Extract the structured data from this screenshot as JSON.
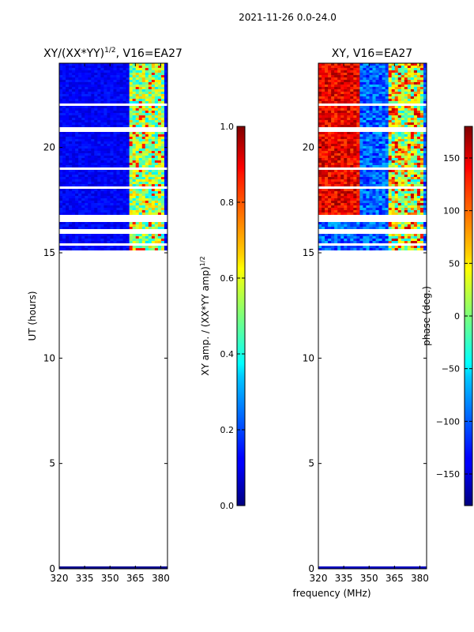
{
  "figure": {
    "suptitle": "2021-11-26 0.0-24.0",
    "xlabel": "frequency (MHz)"
  },
  "chart_data": [
    {
      "type": "heatmap",
      "title_main": "XY/(XX*YY)",
      "title_sup": "1/2",
      "title_rest": ", V16=EA27",
      "ylabel": "UT (hours)",
      "xlim": [
        320,
        384
      ],
      "ylim": [
        0,
        24
      ],
      "x_ticks": [
        320,
        335,
        350,
        365,
        380
      ],
      "y_ticks": [
        0,
        5,
        10,
        15,
        20
      ],
      "data_rows_ut": [
        15.2,
        24.0
      ],
      "rfi_band_mhz": [
        361,
        383
      ],
      "colorbar": {
        "label_main": "XY amp. / (XX*YY amp)",
        "label_sup": "1/2",
        "range": [
          0.0,
          1.0
        ],
        "ticks": [
          "0.0",
          "0.2",
          "0.4",
          "0.6",
          "0.8",
          "1.0"
        ],
        "tick_values": [
          0.0,
          0.2,
          0.4,
          0.6,
          0.8,
          1.0
        ]
      }
    },
    {
      "type": "heatmap",
      "title": "XY, V16=EA27",
      "xlim": [
        320,
        384
      ],
      "ylim": [
        0,
        24
      ],
      "x_ticks": [
        320,
        335,
        350,
        365,
        380
      ],
      "y_ticks": [
        0,
        5,
        10,
        15,
        20
      ],
      "data_rows_ut": [
        15.2,
        24.0
      ],
      "rfi_band_mhz": [
        361,
        383
      ],
      "colorbar": {
        "label": "phase (deg.)",
        "range": [
          -180,
          180
        ],
        "ticks": [
          "−150",
          "−100",
          "−50",
          "0",
          "50",
          "100",
          "150"
        ],
        "tick_values": [
          -150,
          -100,
          -50,
          0,
          50,
          100,
          150
        ]
      }
    }
  ]
}
